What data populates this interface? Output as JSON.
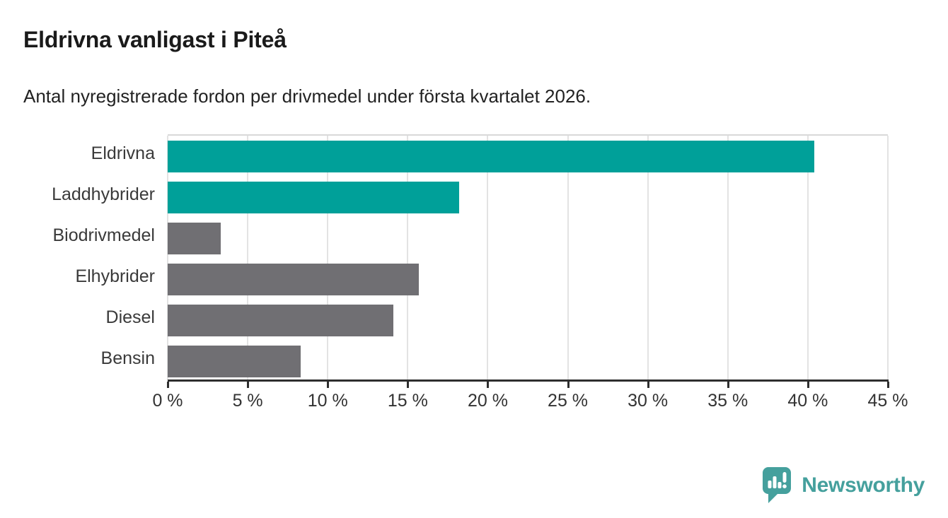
{
  "header": {
    "title": "Eldrivna vanligast i Piteå",
    "subtitle": "Antal nyregistrerade fordon per drivmedel under första kvartalet 2026."
  },
  "chart_data": {
    "type": "bar",
    "orientation": "horizontal",
    "title": "Eldrivna vanligast i Piteå",
    "subtitle": "Antal nyregistrerade fordon per drivmedel under första kvartalet 2026.",
    "categories": [
      "Eldrivna",
      "Laddhybrider",
      "Biodrivmedel",
      "Elhybrider",
      "Diesel",
      "Bensin"
    ],
    "values": [
      40.4,
      18.2,
      3.3,
      15.7,
      14.1,
      8.3
    ],
    "unit": "%",
    "xlim": [
      0,
      45
    ],
    "xticks": [
      0,
      5,
      10,
      15,
      20,
      25,
      30,
      35,
      40,
      45
    ],
    "xtick_labels": [
      "0 %",
      "5 %",
      "10 %",
      "15 %",
      "20 %",
      "25 %",
      "30 %",
      "35 %",
      "40 %",
      "45 %"
    ],
    "grid": true,
    "legend": "none",
    "bar_color_keys": [
      "accent",
      "accent",
      "neutral",
      "neutral",
      "neutral",
      "neutral"
    ]
  },
  "colors": {
    "accent": "#00a099",
    "neutral": "#706f73",
    "gridline": "#e3e3e3",
    "axis": "#2e2e2e",
    "logo": "#45a09d"
  },
  "footer": {
    "brand": "Newsworthy"
  }
}
